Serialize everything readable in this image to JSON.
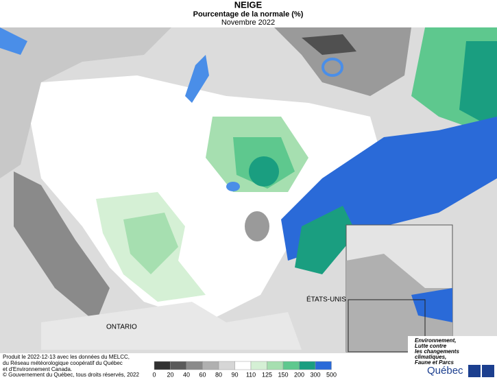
{
  "header": {
    "title": "NEIGE",
    "subtitle": "Pourcentage de la normale (%)",
    "date": "Novembre 2022"
  },
  "map": {
    "labels": [
      "ONTARIO",
      "ÉTATS-UNIS"
    ]
  },
  "legend": {
    "ticks": [
      0,
      20,
      40,
      60,
      80,
      90,
      110,
      125,
      150,
      200,
      300,
      500
    ],
    "colors": [
      "#303030",
      "#5a5a5a",
      "#8a8a8a",
      "#b0b0b0",
      "#d6d6d6",
      "#ffffff",
      "#d5f0d5",
      "#a6dfb0",
      "#5ec88e",
      "#1a9e80",
      "#2a6ad8"
    ]
  },
  "credits": [
    "Produit le 2022-12-13 avec les données du MELCC,",
    "du Réseau météorologique coopératif du Québec",
    "et d'Environnement Canada.",
    "© Gouvernement du Québec, tous droits réservés, 2022"
  ],
  "logo": {
    "ministry": [
      "Environnement,",
      "Lutte contre",
      "les changements",
      "climatiques,",
      "Faune et Parcs"
    ],
    "name": "Québec"
  }
}
